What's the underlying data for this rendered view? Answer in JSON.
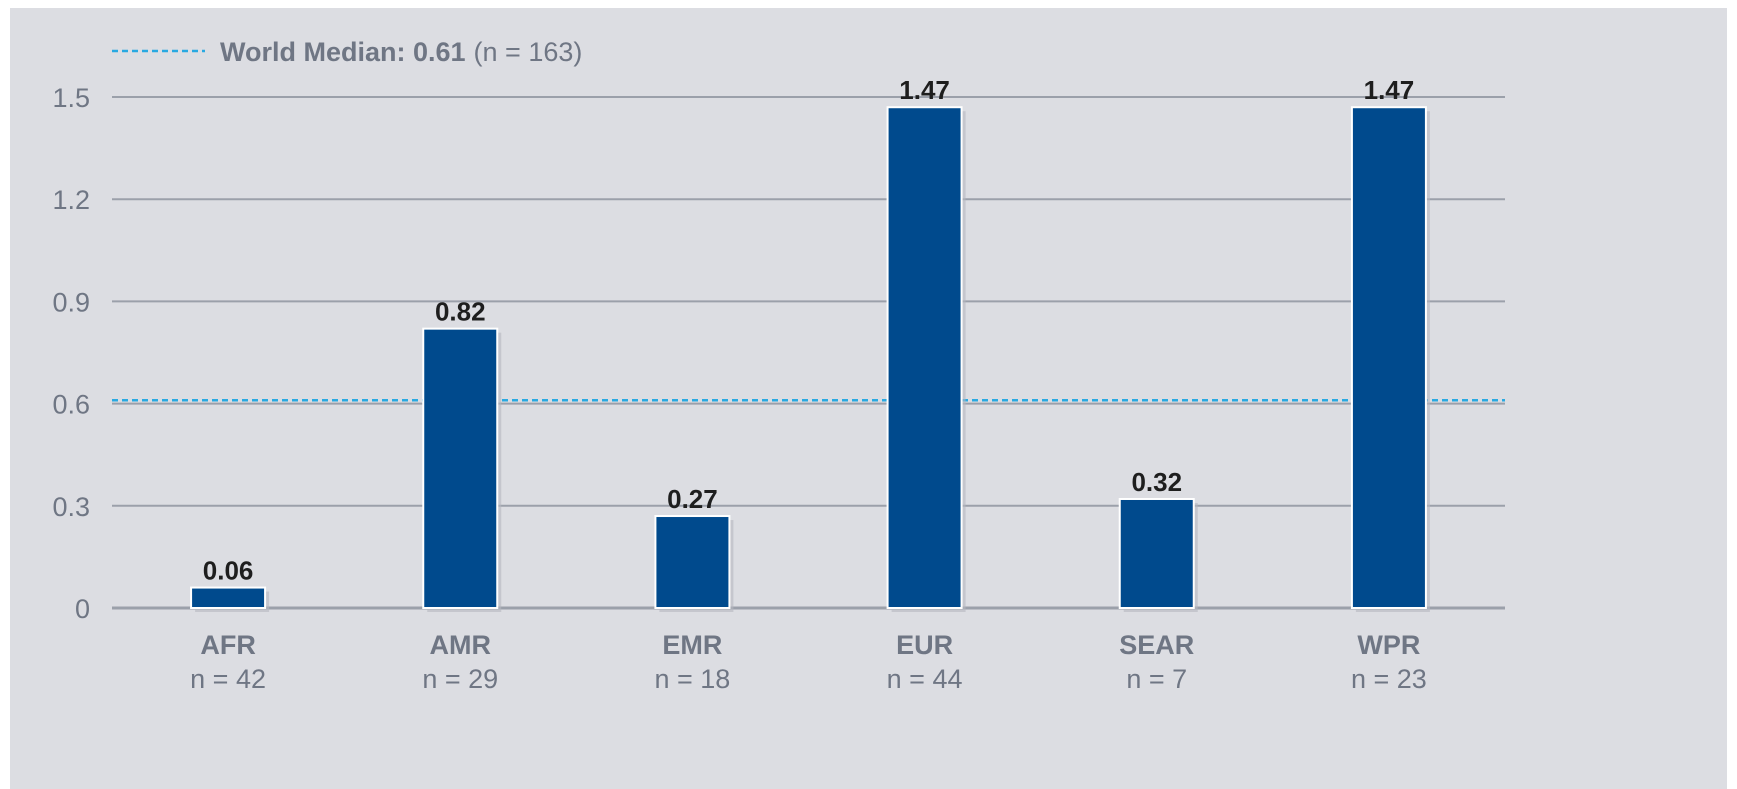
{
  "chart_data": {
    "type": "bar",
    "categories": [
      "AFR",
      "AMR",
      "EMR",
      "EUR",
      "SEAR",
      "WPR"
    ],
    "category_counts": [
      "n = 42",
      "n = 29",
      "n = 18",
      "n = 44",
      "n = 7",
      "n = 23"
    ],
    "values": [
      0.06,
      0.82,
      0.27,
      1.47,
      0.32,
      1.47
    ],
    "value_labels": [
      "0.06",
      "0.82",
      "0.27",
      "1.47",
      "0.32",
      "1.47"
    ],
    "yticks": [
      "0",
      "0.3",
      "0.6",
      "0.9",
      "1.2",
      "1.5"
    ],
    "ylim": [
      0,
      1.5
    ],
    "grid": true,
    "reference_line": {
      "label": "World Median: 0.61",
      "count": "(n = 163)",
      "value": 0.61,
      "color": "#29a9e1"
    },
    "bar_color": "#004a8d",
    "legend_position": "top-left"
  }
}
